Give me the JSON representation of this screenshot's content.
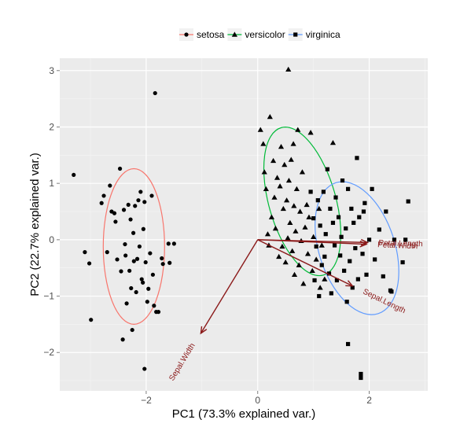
{
  "chart_data": {
    "type": "scatter",
    "xlabel": "PC1 (73.3% explained var.)",
    "ylabel": "PC2 (22.7% explained var.)",
    "xlim": [
      -3.55,
      3.05
    ],
    "ylim": [
      -2.68,
      3.22
    ],
    "x_ticks": [
      -2,
      0,
      2
    ],
    "y_ticks": [
      -2,
      -1,
      0,
      1,
      2,
      3
    ],
    "tick_labels_x": [
      "−2",
      "0",
      "2"
    ],
    "tick_labels_y": [
      "−2",
      "−1",
      "0",
      "1",
      "2",
      "3"
    ],
    "grid": true,
    "panel_background": "#ebebeb",
    "legend_position": "top",
    "series": [
      {
        "name": "setosa",
        "color": "#f8766d",
        "marker": "circle",
        "points": [
          [
            -3.3,
            1.15
          ],
          [
            -3.1,
            -0.22
          ],
          [
            -3.02,
            -0.42
          ],
          [
            -2.99,
            -1.42
          ],
          [
            -2.8,
            0.65
          ],
          [
            -2.76,
            0.78
          ],
          [
            -2.7,
            -0.22
          ],
          [
            -2.65,
            0.96
          ],
          [
            -2.62,
            0.5
          ],
          [
            -2.57,
            0.47
          ],
          [
            -2.55,
            0.32
          ],
          [
            -2.52,
            -0.35
          ],
          [
            -2.47,
            1.26
          ],
          [
            -2.45,
            -0.56
          ],
          [
            -2.42,
            -1.77
          ],
          [
            -2.4,
            0.53
          ],
          [
            -2.38,
            -0.08
          ],
          [
            -2.37,
            -0.28
          ],
          [
            -2.35,
            -1.13
          ],
          [
            -2.32,
            0.62
          ],
          [
            -2.3,
            -0.55
          ],
          [
            -2.28,
            0.36
          ],
          [
            -2.27,
            -0.86
          ],
          [
            -2.25,
            -1.6
          ],
          [
            -2.23,
            0.12
          ],
          [
            -2.22,
            -0.38
          ],
          [
            -2.2,
            0.6
          ],
          [
            -2.18,
            -0.93
          ],
          [
            -2.16,
            -0.34
          ],
          [
            -2.14,
            0.7
          ],
          [
            -2.12,
            -0.12
          ],
          [
            -2.1,
            0.85
          ],
          [
            -2.08,
            -0.7
          ],
          [
            -2.06,
            -0.76
          ],
          [
            -2.05,
            0.19
          ],
          [
            -2.03,
            0.67
          ],
          [
            -2.01,
            -0.4
          ],
          [
            -1.98,
            -1.1
          ],
          [
            -1.96,
            -0.87
          ],
          [
            -1.93,
            -0.24
          ],
          [
            -1.9,
            0.78
          ],
          [
            -1.88,
            -0.62
          ],
          [
            -1.86,
            -1.17
          ],
          [
            -1.84,
            2.6
          ],
          [
            -1.82,
            -1.28
          ],
          [
            -1.78,
            -1.28
          ],
          [
            -1.72,
            -0.33
          ],
          [
            -1.7,
            -0.43
          ],
          [
            -1.6,
            -0.07
          ],
          [
            -1.58,
            -0.41
          ],
          [
            -1.5,
            -0.07
          ],
          [
            -2.03,
            -2.29
          ]
        ]
      },
      {
        "name": "versicolor",
        "color": "#00ba38",
        "marker": "triangle",
        "points": [
          [
            0.05,
            1.95
          ],
          [
            0.1,
            1.7
          ],
          [
            0.12,
            1.2
          ],
          [
            0.15,
            0.9
          ],
          [
            0.18,
            0.1
          ],
          [
            0.2,
            -0.1
          ],
          [
            0.22,
            2.18
          ],
          [
            0.25,
            0.4
          ],
          [
            0.28,
            1.4
          ],
          [
            0.3,
            0.75
          ],
          [
            0.32,
            0.2
          ],
          [
            0.35,
            1.1
          ],
          [
            0.38,
            -0.3
          ],
          [
            0.4,
            0.95
          ],
          [
            0.42,
            1.65
          ],
          [
            0.44,
            -0.12
          ],
          [
            0.46,
            0.55
          ],
          [
            0.48,
            1.33
          ],
          [
            0.5,
            -0.4
          ],
          [
            0.52,
            0.7
          ],
          [
            0.54,
            0.03
          ],
          [
            0.55,
            3.02
          ],
          [
            0.56,
            1.05
          ],
          [
            0.58,
            0.3
          ],
          [
            0.6,
            1.42
          ],
          [
            0.62,
            -0.2
          ],
          [
            0.64,
            1.7
          ],
          [
            0.65,
            0.6
          ],
          [
            0.66,
            -0.62
          ],
          [
            0.68,
            0.15
          ],
          [
            0.7,
            0.9
          ],
          [
            0.72,
            1.95
          ],
          [
            0.74,
            -0.45
          ],
          [
            0.76,
            0.5
          ],
          [
            0.78,
            -0.02
          ],
          [
            0.8,
            1.2
          ],
          [
            0.82,
            -0.78
          ],
          [
            0.85,
            0.22
          ],
          [
            0.88,
            0.62
          ],
          [
            0.9,
            -0.25
          ],
          [
            0.92,
            0.4
          ],
          [
            0.95,
            1.9
          ],
          [
            0.98,
            -0.55
          ],
          [
            1.0,
            0.05
          ],
          [
            1.05,
            -0.35
          ],
          [
            1.1,
            0.55
          ],
          [
            1.12,
            -0.85
          ],
          [
            1.15,
            -0.1
          ],
          [
            1.2,
            -0.7
          ],
          [
            1.35,
            1.72
          ]
        ]
      },
      {
        "name": "virginica",
        "color": "#619cff",
        "marker": "square",
        "points": [
          [
            0.95,
            0.85
          ],
          [
            1.0,
            0.38
          ],
          [
            1.02,
            -0.72
          ],
          [
            1.05,
            -0.12
          ],
          [
            1.08,
            0.7
          ],
          [
            1.1,
            -1.0
          ],
          [
            1.12,
            0.25
          ],
          [
            1.15,
            -0.45
          ],
          [
            1.18,
            0.85
          ],
          [
            1.2,
            -0.3
          ],
          [
            1.22,
            0.1
          ],
          [
            1.25,
            1.25
          ],
          [
            1.28,
            -0.6
          ],
          [
            1.3,
            0.55
          ],
          [
            1.32,
            -0.95
          ],
          [
            1.35,
            0.3
          ],
          [
            1.38,
            -0.1
          ],
          [
            1.4,
            0.75
          ],
          [
            1.42,
            -0.72
          ],
          [
            1.45,
            0.4
          ],
          [
            1.48,
            -0.28
          ],
          [
            1.5,
            0.05
          ],
          [
            1.52,
            1.05
          ],
          [
            1.55,
            -0.55
          ],
          [
            1.58,
            0.2
          ],
          [
            1.6,
            -1.1
          ],
          [
            1.62,
            0.9
          ],
          [
            1.65,
            -0.38
          ],
          [
            1.68,
            0.55
          ],
          [
            1.7,
            -0.85
          ],
          [
            1.72,
            0.3
          ],
          [
            1.75,
            -0.15
          ],
          [
            1.78,
            1.45
          ],
          [
            1.8,
            -0.7
          ],
          [
            1.82,
            0.4
          ],
          [
            1.85,
            -2.45
          ],
          [
            1.88,
            -0.25
          ],
          [
            1.9,
            0.5
          ],
          [
            1.92,
            0.65
          ],
          [
            1.95,
            -0.62
          ],
          [
            2.0,
            0.0
          ],
          [
            2.05,
            0.9
          ],
          [
            2.1,
            -0.35
          ],
          [
            2.18,
            0.18
          ],
          [
            2.25,
            -0.65
          ],
          [
            2.3,
            0.5
          ],
          [
            2.38,
            -0.9
          ],
          [
            2.45,
            0.0
          ],
          [
            2.6,
            -0.4
          ],
          [
            2.7,
            0.68
          ],
          [
            1.62,
            -1.85
          ],
          [
            1.85,
            -2.38
          ],
          [
            2.4,
            -0.92
          ],
          [
            2.65,
            0.0
          ]
        ]
      }
    ],
    "ellipses": [
      {
        "series": "setosa",
        "color": "#f8766d",
        "cx": -2.22,
        "cy": -0.12,
        "rx": 0.55,
        "ry": 1.38,
        "rotation_deg": 0
      },
      {
        "series": "versicolor",
        "color": "#00ba38",
        "cx": 0.8,
        "cy": 0.68,
        "rx": 0.6,
        "ry": 1.36,
        "rotation_deg": -16
      },
      {
        "series": "virginica",
        "color": "#619cff",
        "cx": 1.78,
        "cy": -0.15,
        "rx": 0.68,
        "ry": 1.22,
        "rotation_deg": -18
      }
    ],
    "arrows": {
      "color": "#8b1a1a",
      "vectors": [
        {
          "label": "Petal.Length",
          "x": 1.97,
          "y": -0.05
        },
        {
          "label": "Petal.Width",
          "x": 1.95,
          "y": -0.08
        },
        {
          "label": "Sepal.Length",
          "x": 1.7,
          "y": -0.82
        },
        {
          "label": "Sepal.Width",
          "x": -1.02,
          "y": -1.66
        }
      ]
    }
  }
}
